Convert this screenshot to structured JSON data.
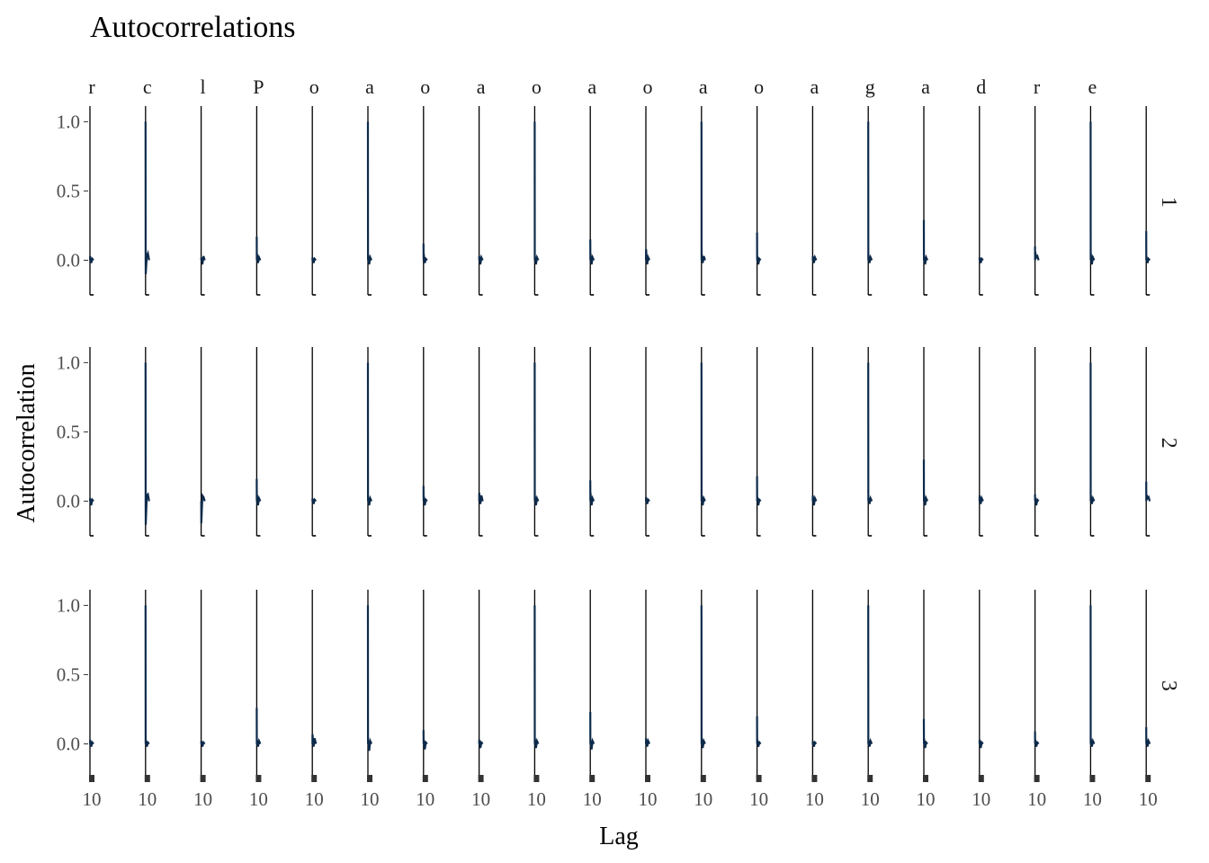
{
  "colors": {
    "series": "#0d2a4a",
    "axis": "#000000",
    "tick_text": "#4d4d4d"
  },
  "chart_data": {
    "type": "line",
    "title": "Autocorrelations",
    "xlabel": "Lag",
    "ylabel": "Autocorrelation",
    "ylim": [
      -0.25,
      1.1
    ],
    "xlim": [
      0,
      20
    ],
    "y_ticks": [
      "0.0",
      "0.5",
      "1.0"
    ],
    "y_tick_values": [
      0.0,
      0.5,
      1.0
    ],
    "x_tick_text": "10",
    "grid": false,
    "row_strips": [
      "1",
      "2",
      "3"
    ],
    "column_strips": [
      "r",
      "c",
      "l",
      "P",
      "o",
      "a",
      "o",
      "a",
      "o",
      "a",
      "o",
      "a",
      "o",
      "a",
      "g",
      "a",
      "d",
      "r",
      "e",
      ""
    ],
    "panels": [
      {
        "row": 0,
        "peak": 0.0,
        "tail": [
          0.03,
          -0.02,
          0.01
        ]
      },
      {
        "row": 0,
        "peak": 1.0,
        "tail": [
          -0.1,
          0.03,
          0.05
        ]
      },
      {
        "row": 0,
        "peak": 0.0,
        "tail": [
          0.02,
          -0.03,
          0.03
        ]
      },
      {
        "row": 0,
        "peak": 0.17,
        "tail": [
          0.05,
          -0.02,
          0.02
        ]
      },
      {
        "row": 0,
        "peak": 0.0,
        "tail": [
          0.02,
          -0.02,
          0.01
        ]
      },
      {
        "row": 0,
        "peak": 1.0,
        "tail": [
          0.04,
          -0.03,
          0.02
        ]
      },
      {
        "row": 0,
        "peak": 0.12,
        "tail": [
          0.05,
          -0.02,
          0.01
        ]
      },
      {
        "row": 0,
        "peak": 0.0,
        "tail": [
          0.03,
          -0.03,
          0.02
        ]
      },
      {
        "row": 0,
        "peak": 1.0,
        "tail": [
          0.03,
          -0.03,
          0.02
        ]
      },
      {
        "row": 0,
        "peak": 0.15,
        "tail": [
          0.05,
          -0.03,
          0.02
        ]
      },
      {
        "row": 0,
        "peak": 0.0,
        "tail": [
          0.08,
          -0.03,
          0.02
        ]
      },
      {
        "row": 0,
        "peak": 1.0,
        "tail": [
          0.05,
          -0.02,
          0.03
        ]
      },
      {
        "row": 0,
        "peak": 0.2,
        "tail": [
          0.03,
          -0.03,
          0.01
        ]
      },
      {
        "row": 0,
        "peak": 0.0,
        "tail": [
          0.03,
          -0.02,
          0.02
        ]
      },
      {
        "row": 0,
        "peak": 1.0,
        "tail": [
          0.04,
          -0.02,
          0.02
        ]
      },
      {
        "row": 0,
        "peak": 0.29,
        "tail": [
          0.03,
          -0.03,
          0.02
        ]
      },
      {
        "row": 0,
        "peak": 0.0,
        "tail": [
          0.02,
          -0.02,
          0.01
        ]
      },
      {
        "row": 0,
        "peak": 0.1,
        "tail": [
          0.06,
          0.02,
          0.03
        ]
      },
      {
        "row": 0,
        "peak": 1.0,
        "tail": [
          0.05,
          -0.03,
          0.02
        ]
      },
      {
        "row": 0,
        "peak": 0.21,
        "tail": [
          0.03,
          -0.02,
          0.01
        ]
      },
      {
        "row": 1,
        "peak": 0.0,
        "tail": [
          0.02,
          -0.03,
          0.01
        ]
      },
      {
        "row": 1,
        "peak": 1.0,
        "tail": [
          -0.17,
          0.04,
          0.05
        ]
      },
      {
        "row": 1,
        "peak": 0.0,
        "tail": [
          -0.16,
          0.04,
          0.03
        ]
      },
      {
        "row": 1,
        "peak": 0.16,
        "tail": [
          0.05,
          -0.03,
          0.02
        ]
      },
      {
        "row": 1,
        "peak": 0.0,
        "tail": [
          0.02,
          -0.02,
          0.01
        ]
      },
      {
        "row": 1,
        "peak": 1.0,
        "tail": [
          0.03,
          -0.03,
          0.02
        ]
      },
      {
        "row": 1,
        "peak": 0.11,
        "tail": [
          0.04,
          -0.03,
          0.01
        ]
      },
      {
        "row": 1,
        "peak": 0.0,
        "tail": [
          0.06,
          -0.02,
          0.04
        ]
      },
      {
        "row": 1,
        "peak": 1.0,
        "tail": [
          0.04,
          -0.03,
          0.02
        ]
      },
      {
        "row": 1,
        "peak": 0.15,
        "tail": [
          0.06,
          -0.03,
          0.02
        ]
      },
      {
        "row": 1,
        "peak": 0.0,
        "tail": [
          0.03,
          -0.02,
          0.01
        ]
      },
      {
        "row": 1,
        "peak": 1.0,
        "tail": [
          0.04,
          -0.03,
          0.02
        ]
      },
      {
        "row": 1,
        "peak": 0.18,
        "tail": [
          0.03,
          -0.03,
          0.01
        ]
      },
      {
        "row": 1,
        "peak": 0.0,
        "tail": [
          0.04,
          -0.03,
          0.02
        ]
      },
      {
        "row": 1,
        "peak": 1.0,
        "tail": [
          0.03,
          -0.02,
          0.02
        ]
      },
      {
        "row": 1,
        "peak": 0.3,
        "tail": [
          0.05,
          -0.03,
          0.02
        ]
      },
      {
        "row": 1,
        "peak": 0.0,
        "tail": [
          0.04,
          -0.02,
          0.02
        ]
      },
      {
        "row": 1,
        "peak": 0.05,
        "tail": [
          0.02,
          -0.03,
          0.01
        ]
      },
      {
        "row": 1,
        "peak": 1.0,
        "tail": [
          0.04,
          -0.02,
          0.02
        ]
      },
      {
        "row": 1,
        "peak": 0.14,
        "tail": [
          0.05,
          0.02,
          0.03
        ]
      },
      {
        "row": 2,
        "peak": 0.0,
        "tail": [
          0.03,
          -0.02,
          0.01
        ]
      },
      {
        "row": 2,
        "peak": 1.0,
        "tail": [
          0.03,
          -0.02,
          0.01
        ]
      },
      {
        "row": 2,
        "peak": 0.0,
        "tail": [
          0.02,
          -0.02,
          0.01
        ]
      },
      {
        "row": 2,
        "peak": 0.26,
        "tail": [
          0.03,
          -0.02,
          0.02
        ]
      },
      {
        "row": 2,
        "peak": 0.0,
        "tail": [
          0.07,
          -0.02,
          0.04
        ]
      },
      {
        "row": 2,
        "peak": 1.0,
        "tail": [
          0.03,
          -0.05,
          0.02
        ]
      },
      {
        "row": 2,
        "peak": 0.1,
        "tail": [
          0.03,
          -0.04,
          0.01
        ]
      },
      {
        "row": 2,
        "peak": 0.0,
        "tail": [
          0.03,
          -0.03,
          0.01
        ]
      },
      {
        "row": 2,
        "peak": 1.0,
        "tail": [
          0.04,
          -0.03,
          0.02
        ]
      },
      {
        "row": 2,
        "peak": 0.23,
        "tail": [
          0.03,
          -0.04,
          0.02
        ]
      },
      {
        "row": 2,
        "peak": 0.0,
        "tail": [
          0.04,
          -0.02,
          0.02
        ]
      },
      {
        "row": 2,
        "peak": 1.0,
        "tail": [
          0.04,
          -0.03,
          0.02
        ]
      },
      {
        "row": 2,
        "peak": 0.2,
        "tail": [
          0.03,
          -0.02,
          0.01
        ]
      },
      {
        "row": 2,
        "peak": 0.0,
        "tail": [
          0.02,
          -0.02,
          0.01
        ]
      },
      {
        "row": 2,
        "peak": 1.0,
        "tail": [
          0.03,
          -0.02,
          0.02
        ]
      },
      {
        "row": 2,
        "peak": 0.18,
        "tail": [
          0.04,
          -0.03,
          0.01
        ]
      },
      {
        "row": 2,
        "peak": 0.0,
        "tail": [
          0.03,
          -0.03,
          0.01
        ]
      },
      {
        "row": 2,
        "peak": 0.09,
        "tail": [
          0.03,
          -0.02,
          0.01
        ]
      },
      {
        "row": 2,
        "peak": 1.0,
        "tail": [
          0.04,
          -0.02,
          0.02
        ]
      },
      {
        "row": 2,
        "peak": 0.12,
        "tail": [
          0.04,
          -0.02,
          0.02
        ]
      }
    ]
  }
}
